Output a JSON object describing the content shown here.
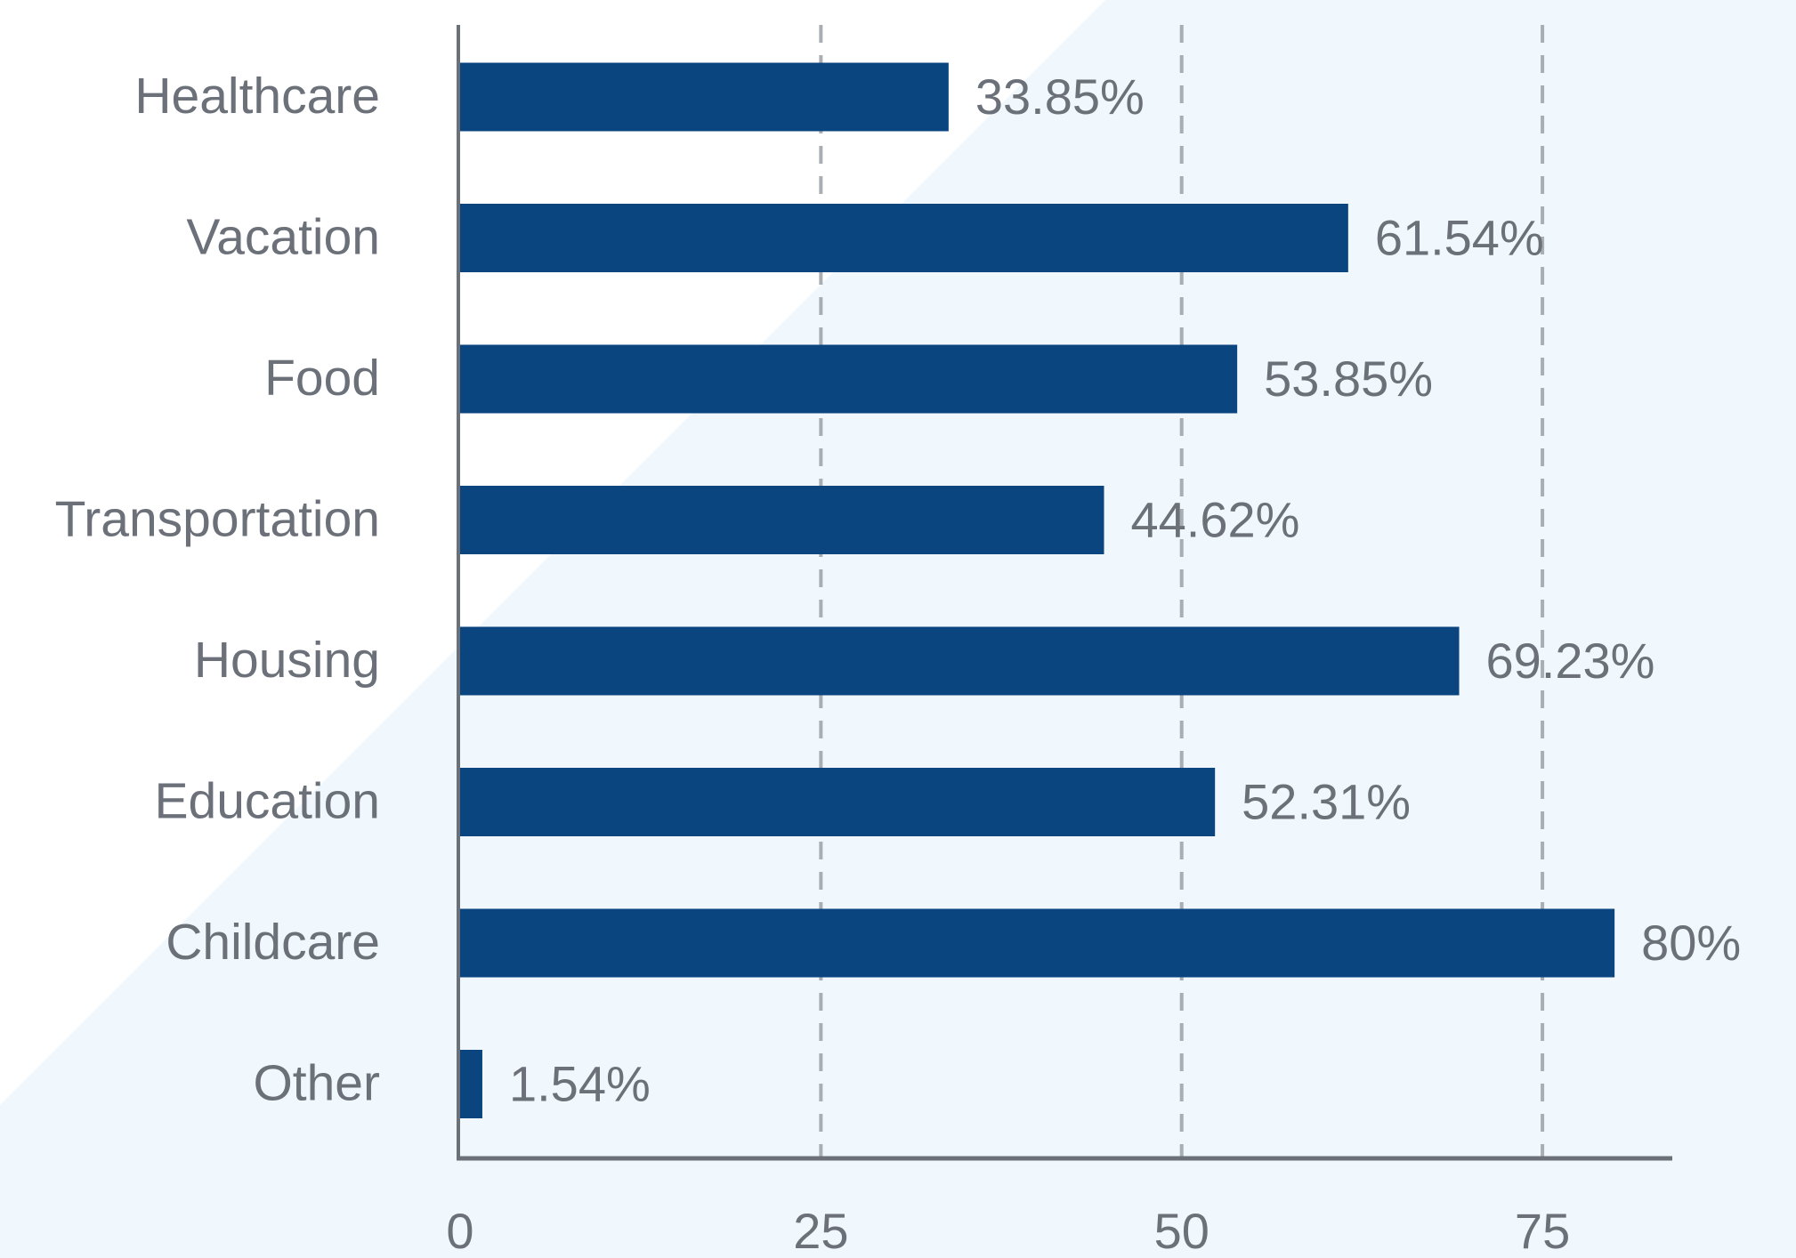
{
  "chart_data": {
    "type": "bar",
    "orientation": "horizontal",
    "categories": [
      "Healthcare",
      "Vacation",
      "Food",
      "Transportation",
      "Housing",
      "Education",
      "Childcare",
      "Other"
    ],
    "values": [
      33.85,
      61.54,
      53.85,
      44.62,
      69.23,
      52.31,
      80,
      1.54
    ],
    "value_labels": [
      "33.85%",
      "61.54%",
      "53.85%",
      "44.62%",
      "69.23%",
      "52.31%",
      "80%",
      "1.54%"
    ],
    "color": "#0b4580",
    "xlim": [
      0,
      84
    ],
    "xticks": [
      0,
      25,
      50,
      75
    ],
    "grid": true
  }
}
